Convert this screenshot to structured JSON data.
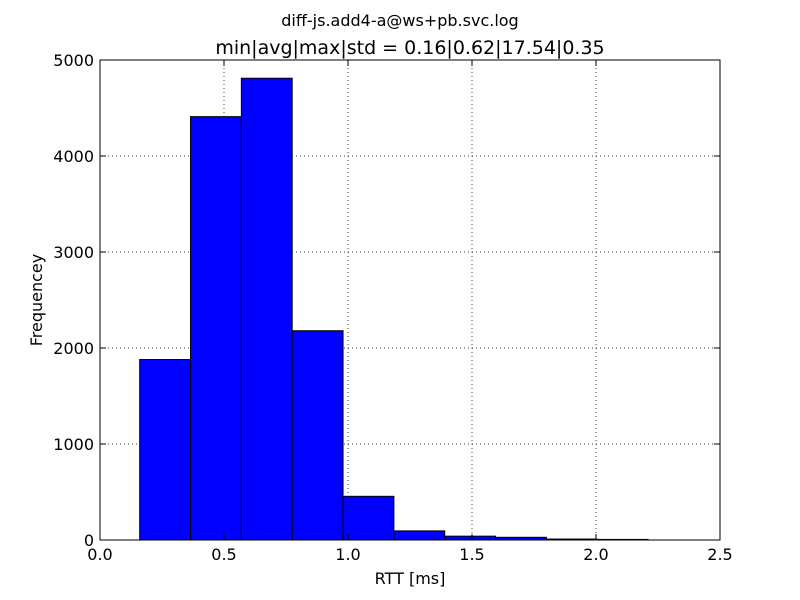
{
  "chart_data": {
    "type": "bar",
    "suptitle": "diff-js.add4-a@ws+pb.svc.log",
    "title": "min|avg|max|std = 0.16|0.62|17.54|0.35",
    "xlabel": "RTT [ms]",
    "ylabel": "Frequencey",
    "xlim": [
      0.0,
      2.5
    ],
    "ylim": [
      0,
      5000
    ],
    "xticks": [
      0.0,
      0.5,
      1.0,
      1.5,
      2.0,
      2.5
    ],
    "xtick_labels": [
      "0.0",
      "0.5",
      "1.0",
      "1.5",
      "2.0",
      "2.5"
    ],
    "yticks": [
      0,
      1000,
      2000,
      3000,
      4000,
      5000
    ],
    "ytick_labels": [
      "0",
      "1000",
      "2000",
      "3000",
      "4000",
      "5000"
    ],
    "grid": true,
    "bar_color": "#0000ff",
    "bins": [
      {
        "x0": 0.16,
        "x1": 0.365,
        "count": 1880
      },
      {
        "x0": 0.365,
        "x1": 0.57,
        "count": 4410
      },
      {
        "x0": 0.57,
        "x1": 0.775,
        "count": 4810
      },
      {
        "x0": 0.775,
        "x1": 0.98,
        "count": 2180
      },
      {
        "x0": 0.98,
        "x1": 1.185,
        "count": 455
      },
      {
        "x0": 1.185,
        "x1": 1.39,
        "count": 95
      },
      {
        "x0": 1.39,
        "x1": 1.595,
        "count": 40
      },
      {
        "x0": 1.595,
        "x1": 1.8,
        "count": 28
      },
      {
        "x0": 1.8,
        "x1": 2.005,
        "count": 10
      },
      {
        "x0": 2.005,
        "x1": 2.21,
        "count": 6
      }
    ]
  }
}
